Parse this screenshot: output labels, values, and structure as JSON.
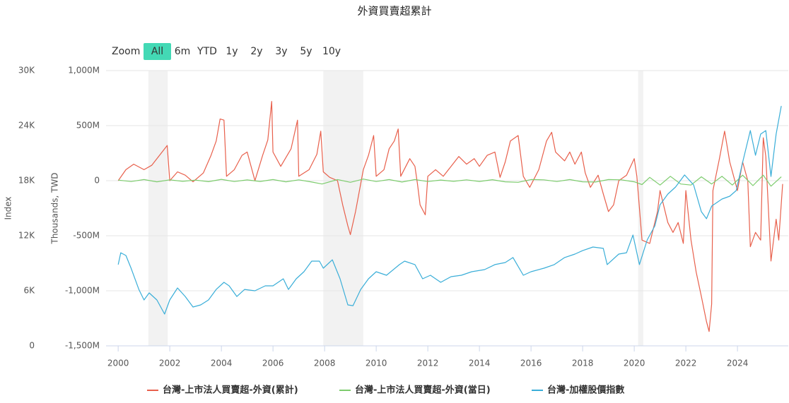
{
  "chart_data": {
    "type": "line",
    "title": "外資買賣超累計",
    "range_selector": {
      "label": "Zoom",
      "buttons": [
        "All",
        "6m",
        "YTD",
        "1y",
        "2y",
        "3y",
        "5y",
        "10y"
      ],
      "selected_index": 0
    },
    "y_label": "Thousands, TWD",
    "y2_label": "Index",
    "xlim": [
      1999.53,
      2025.97
    ],
    "xticks": [
      2000,
      2002,
      2004,
      2006,
      2008,
      2010,
      2012,
      2014,
      2016,
      2018,
      2020,
      2022,
      2024
    ],
    "ylim": [
      -1500000000.0,
      1000000000.0
    ],
    "yticks": [
      {
        "value": -1500000000.0,
        "label": "-1,500M"
      },
      {
        "value": -1000000000.0,
        "label": "-1,000M"
      },
      {
        "value": -500000000.0,
        "label": "-500M"
      },
      0,
      {
        "value": 500000000.0,
        "label": "500M"
      },
      {
        "value": 1000000000.0,
        "label": "1,000M"
      }
    ],
    "y2lim": [
      0,
      30000
    ],
    "y2ticks": [
      0,
      {
        "value": 6000,
        "label": "6K"
      },
      {
        "value": 12000,
        "label": "12K"
      },
      {
        "value": 18000,
        "label": "18K"
      },
      {
        "value": 24000,
        "label": "24K"
      },
      {
        "value": 30000,
        "label": "30K"
      }
    ],
    "grid": true,
    "legend": "bottom",
    "plot_bands": [
      [
        2001.17,
        2001.92
      ],
      [
        2007.95,
        2009.5
      ],
      [
        2020.15,
        2020.35
      ]
    ],
    "series": [
      {
        "name": "台灣-上市法人買賣超-外資(累計)",
        "color": "#e8604c",
        "x": [
          2000.0,
          2000.3,
          2000.6,
          2001.0,
          2001.3,
          2001.6,
          2001.9,
          2002.0,
          2002.3,
          2002.6,
          2002.9,
          2003.3,
          2003.6,
          2003.8,
          2003.95,
          2004.1,
          2004.2,
          2004.5,
          2004.8,
          2005.0,
          2005.3,
          2005.6,
          2005.8,
          2005.95,
          2006.0,
          2006.3,
          2006.7,
          2006.95,
          2007.0,
          2007.4,
          2007.7,
          2007.85,
          2007.95,
          2008.2,
          2008.5,
          2008.7,
          2008.9,
          2009.0,
          2009.2,
          2009.5,
          2009.7,
          2009.9,
          2010.0,
          2010.3,
          2010.5,
          2010.7,
          2010.85,
          2010.95,
          2011.3,
          2011.5,
          2011.6,
          2011.7,
          2011.9,
          2012.0,
          2012.3,
          2012.6,
          2012.9,
          2013.2,
          2013.5,
          2013.8,
          2014.0,
          2014.3,
          2014.6,
          2014.8,
          2015.0,
          2015.2,
          2015.5,
          2015.7,
          2015.95,
          2016.3,
          2016.6,
          2016.8,
          2016.95,
          2017.3,
          2017.5,
          2017.7,
          2017.95,
          2018.1,
          2018.3,
          2018.6,
          2018.8,
          2019.0,
          2019.2,
          2019.4,
          2019.7,
          2020.0,
          2020.1,
          2020.3,
          2020.6,
          2020.9,
          2021.0,
          2021.3,
          2021.5,
          2021.7,
          2021.9,
          2022.0,
          2022.2,
          2022.4,
          2022.6,
          2022.8,
          2022.9,
          2023.0,
          2023.05,
          2023.3,
          2023.5,
          2023.7,
          2023.9,
          2024.0,
          2024.2,
          2024.4,
          2024.5,
          2024.7,
          2024.9,
          2025.0,
          2025.1,
          2025.3,
          2025.5,
          2025.6,
          2025.75
        ],
        "values": [
          0,
          100000000.0,
          150000000.0,
          100000000.0,
          140000000.0,
          230000000.0,
          320000000.0,
          0,
          80000000.0,
          50000000.0,
          -10000000.0,
          70000000.0,
          230000000.0,
          360000000.0,
          560000000.0,
          550000000.0,
          40000000.0,
          100000000.0,
          230000000.0,
          260000000.0,
          0,
          230000000.0,
          370000000.0,
          720000000.0,
          260000000.0,
          130000000.0,
          290000000.0,
          550000000.0,
          40000000.0,
          100000000.0,
          240000000.0,
          450000000.0,
          80000000.0,
          30000000.0,
          0,
          -220000000.0,
          -410000000.0,
          -490000000.0,
          -280000000.0,
          100000000.0,
          230000000.0,
          410000000.0,
          40000000.0,
          100000000.0,
          290000000.0,
          360000000.0,
          470000000.0,
          40000000.0,
          200000000.0,
          130000000.0,
          -30000000.0,
          -220000000.0,
          -310000000.0,
          40000000.0,
          100000000.0,
          40000000.0,
          130000000.0,
          220000000.0,
          150000000.0,
          200000000.0,
          130000000.0,
          230000000.0,
          260000000.0,
          30000000.0,
          170000000.0,
          360000000.0,
          410000000.0,
          40000000.0,
          -60000000.0,
          100000000.0,
          360000000.0,
          440000000.0,
          260000000.0,
          180000000.0,
          260000000.0,
          150000000.0,
          260000000.0,
          70000000.0,
          -60000000.0,
          50000000.0,
          -120000000.0,
          -280000000.0,
          -220000000.0,
          0,
          50000000.0,
          200000000.0,
          40000000.0,
          -540000000.0,
          -570000000.0,
          -280000000.0,
          -90000000.0,
          -380000000.0,
          -470000000.0,
          -380000000.0,
          -570000000.0,
          -90000000.0,
          -540000000.0,
          -830000000.0,
          -1050000000.0,
          -1280000000.0,
          -1370000000.0,
          -1120000000.0,
          -90000000.0,
          200000000.0,
          450000000.0,
          170000000.0,
          0,
          -90000000.0,
          170000000.0,
          0,
          -600000000.0,
          -470000000.0,
          -540000000.0,
          390000000.0,
          220000000.0,
          -730000000.0,
          -350000000.0,
          -540000000.0,
          -30000000.0
        ]
      },
      {
        "name": "台灣-上市法人買賣超-外資(當日)",
        "color": "#7dcc6e",
        "x": [
          2000.0,
          2000.5,
          2001.0,
          2001.5,
          2002.0,
          2002.5,
          2003.0,
          2003.5,
          2004.0,
          2004.5,
          2005.0,
          2005.5,
          2006.0,
          2006.5,
          2007.0,
          2007.5,
          2007.9,
          2008.5,
          2009.0,
          2009.5,
          2010.0,
          2010.5,
          2011.0,
          2011.5,
          2012.0,
          2012.5,
          2013.0,
          2013.5,
          2014.0,
          2014.5,
          2015.0,
          2015.5,
          2016.0,
          2016.5,
          2017.0,
          2017.5,
          2018.0,
          2018.5,
          2019.0,
          2019.5,
          2020.0,
          2020.3,
          2020.6,
          2021.0,
          2021.4,
          2021.8,
          2022.2,
          2022.6,
          2023.0,
          2023.4,
          2023.8,
          2024.2,
          2024.6,
          2025.0,
          2025.3,
          2025.7
        ],
        "values": [
          5000000.0,
          -8000000.0,
          10000000.0,
          -10000000.0,
          8000000.0,
          -6000000.0,
          5000000.0,
          -9000000.0,
          12000000.0,
          -8000000.0,
          7000000.0,
          -7000000.0,
          10000000.0,
          -10000000.0,
          8000000.0,
          -12000000.0,
          -30000000.0,
          10000000.0,
          -15000000.0,
          15000000.0,
          -8000000.0,
          10000000.0,
          -12000000.0,
          10000000.0,
          -8000000.0,
          6000000.0,
          -6000000.0,
          8000000.0,
          -7000000.0,
          9000000.0,
          -10000000.0,
          -15000000.0,
          10000000.0,
          8000000.0,
          -8000000.0,
          10000000.0,
          -10000000.0,
          -12000000.0,
          10000000.0,
          8000000.0,
          -10000000.0,
          -35000000.0,
          30000000.0,
          -40000000.0,
          40000000.0,
          -30000000.0,
          -40000000.0,
          35000000.0,
          -30000000.0,
          40000000.0,
          -40000000.0,
          50000000.0,
          -45000000.0,
          50000000.0,
          -50000000.0,
          35000000.0
        ]
      },
      {
        "name": "台灣-加權股價指數",
        "color": "#3aaed8",
        "axis": "y2",
        "x": [
          2000.0,
          2000.1,
          2000.3,
          2000.5,
          2000.8,
          2001.0,
          2001.2,
          2001.5,
          2001.8,
          2002.0,
          2002.3,
          2002.6,
          2002.9,
          2003.2,
          2003.5,
          2003.8,
          2004.1,
          2004.3,
          2004.6,
          2004.9,
          2005.3,
          2005.7,
          2006.0,
          2006.4,
          2006.6,
          2006.9,
          2007.2,
          2007.5,
          2007.8,
          2007.95,
          2008.3,
          2008.6,
          2008.9,
          2009.1,
          2009.4,
          2009.7,
          2010.0,
          2010.4,
          2010.9,
          2011.1,
          2011.5,
          2011.8,
          2012.1,
          2012.5,
          2012.9,
          2013.3,
          2013.7,
          2014.2,
          2014.6,
          2015.0,
          2015.3,
          2015.7,
          2016.0,
          2016.5,
          2016.9,
          2017.3,
          2017.7,
          2018.0,
          2018.4,
          2018.8,
          2018.95,
          2019.4,
          2019.7,
          2019.95,
          2020.2,
          2020.5,
          2020.8,
          2021.0,
          2021.3,
          2021.6,
          2021.95,
          2022.3,
          2022.6,
          2022.8,
          2023.0,
          2023.4,
          2023.7,
          2023.95,
          2024.2,
          2024.5,
          2024.7,
          2024.9,
          2025.1,
          2025.3,
          2025.5,
          2025.7
        ],
        "values": [
          8850,
          10150,
          9850,
          8460,
          6150,
          5000,
          5770,
          5000,
          3460,
          5000,
          6310,
          5380,
          4230,
          4460,
          5000,
          6150,
          6920,
          6540,
          5380,
          6150,
          6000,
          6540,
          6540,
          7310,
          6150,
          7310,
          8080,
          9230,
          9230,
          8460,
          9380,
          7310,
          4460,
          4380,
          6150,
          7310,
          8080,
          7690,
          8850,
          9230,
          8850,
          7310,
          7690,
          6920,
          7540,
          7690,
          8080,
          8310,
          8850,
          9080,
          9620,
          7690,
          8080,
          8460,
          8850,
          9620,
          10000,
          10380,
          10770,
          10620,
          8850,
          10000,
          10150,
          12080,
          8850,
          11540,
          13080,
          15380,
          16540,
          17310,
          18620,
          17540,
          14620,
          13850,
          15230,
          16000,
          16310,
          16920,
          20000,
          23460,
          20770,
          23080,
          23460,
          18460,
          23080,
          26150
        ]
      }
    ]
  }
}
